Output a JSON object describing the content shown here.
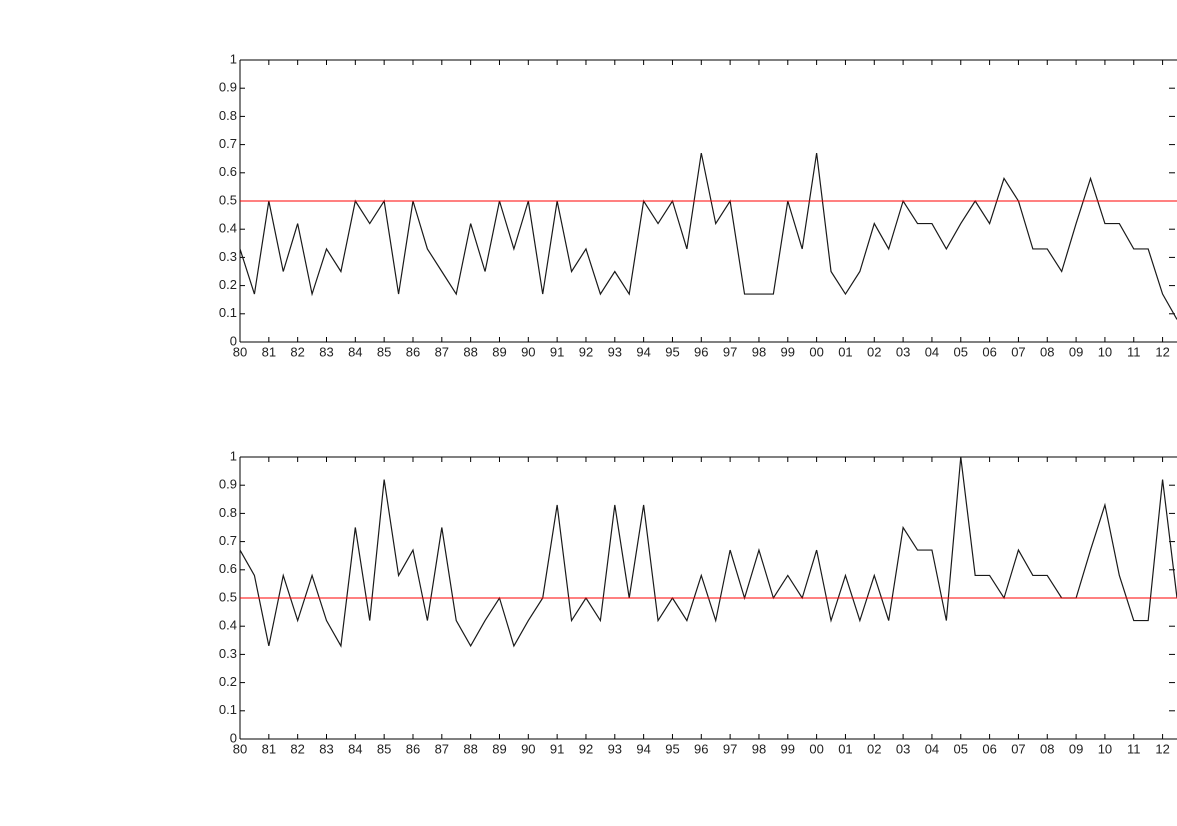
{
  "chart_data": [
    {
      "type": "line",
      "color": "#1a1a1a",
      "x": [
        1980,
        1980.5,
        1981,
        1981.5,
        1982,
        1982.5,
        1983,
        1983.5,
        1984,
        1984.5,
        1985,
        1985.5,
        1986,
        1986.5,
        1987,
        1987.5,
        1988,
        1988.5,
        1989,
        1989.5,
        1990,
        1990.5,
        1991,
        1991.5,
        1992,
        1992.5,
        1993,
        1993.5,
        1994,
        1994.5,
        1995,
        1995.5,
        1996,
        1996.5,
        1997,
        1997.5,
        1998,
        1998.5,
        1999,
        1999.5,
        2000,
        2000.5,
        2001,
        2001.5,
        2002,
        2002.5,
        2003,
        2003.5,
        2004,
        2004.5,
        2005,
        2005.5,
        2006,
        2006.5,
        2007,
        2007.5,
        2008,
        2008.5,
        2009,
        2009.5,
        2010,
        2010.5,
        2011,
        2011.5,
        2012,
        2012.5
      ],
      "values": [
        0.33,
        0.17,
        0.5,
        0.25,
        0.42,
        0.17,
        0.33,
        0.25,
        0.5,
        0.42,
        0.5,
        0.17,
        0.5,
        0.33,
        0.25,
        0.17,
        0.42,
        0.25,
        0.5,
        0.33,
        0.5,
        0.17,
        0.5,
        0.25,
        0.33,
        0.17,
        0.25,
        0.17,
        0.5,
        0.42,
        0.5,
        0.33,
        0.67,
        0.42,
        0.5,
        0.17,
        0.17,
        0.17,
        0.5,
        0.33,
        0.67,
        0.25,
        0.17,
        0.25,
        0.42,
        0.33,
        0.5,
        0.42,
        0.42,
        0.33,
        0.42,
        0.5,
        0.42,
        0.58,
        0.5,
        0.33,
        0.33,
        0.25,
        0.42,
        0.58,
        0.42,
        0.42,
        0.33,
        0.33,
        0.17,
        0.08
      ],
      "reference_line": {
        "value": 0.5,
        "color": "#ff0000"
      },
      "xlim": [
        1980,
        2012.5
      ],
      "ylim": [
        0,
        1
      ],
      "xticks": [
        {
          "value": 1980,
          "label": "80"
        },
        {
          "value": 1981,
          "label": "81"
        },
        {
          "value": 1982,
          "label": "82"
        },
        {
          "value": 1983,
          "label": "83"
        },
        {
          "value": 1984,
          "label": "84"
        },
        {
          "value": 1985,
          "label": "85"
        },
        {
          "value": 1986,
          "label": "86"
        },
        {
          "value": 1987,
          "label": "87"
        },
        {
          "value": 1988,
          "label": "88"
        },
        {
          "value": 1989,
          "label": "89"
        },
        {
          "value": 1990,
          "label": "90"
        },
        {
          "value": 1991,
          "label": "91"
        },
        {
          "value": 1992,
          "label": "92"
        },
        {
          "value": 1993,
          "label": "93"
        },
        {
          "value": 1994,
          "label": "94"
        },
        {
          "value": 1995,
          "label": "95"
        },
        {
          "value": 1996,
          "label": "96"
        },
        {
          "value": 1997,
          "label": "97"
        },
        {
          "value": 1998,
          "label": "98"
        },
        {
          "value": 1999,
          "label": "99"
        },
        {
          "value": 2000,
          "label": "00"
        },
        {
          "value": 2001,
          "label": "01"
        },
        {
          "value": 2002,
          "label": "02"
        },
        {
          "value": 2003,
          "label": "03"
        },
        {
          "value": 2004,
          "label": "04"
        },
        {
          "value": 2005,
          "label": "05"
        },
        {
          "value": 2006,
          "label": "06"
        },
        {
          "value": 2007,
          "label": "07"
        },
        {
          "value": 2008,
          "label": "08"
        },
        {
          "value": 2009,
          "label": "09"
        },
        {
          "value": 2010,
          "label": "10"
        },
        {
          "value": 2011,
          "label": "11"
        },
        {
          "value": 2012,
          "label": "12"
        }
      ],
      "yticks": [
        0,
        0.1,
        0.2,
        0.3,
        0.4,
        0.5,
        0.6,
        0.7,
        0.8,
        0.9,
        1
      ]
    },
    {
      "type": "line",
      "color": "#1a1a1a",
      "x": [
        1980,
        1980.5,
        1981,
        1981.5,
        1982,
        1982.5,
        1983,
        1983.5,
        1984,
        1984.5,
        1985,
        1985.5,
        1986,
        1986.5,
        1987,
        1987.5,
        1988,
        1988.5,
        1989,
        1989.5,
        1990,
        1990.5,
        1991,
        1991.5,
        1992,
        1992.5,
        1993,
        1993.5,
        1994,
        1994.5,
        1995,
        1995.5,
        1996,
        1996.5,
        1997,
        1997.5,
        1998,
        1998.5,
        1999,
        1999.5,
        2000,
        2000.5,
        2001,
        2001.5,
        2002,
        2002.5,
        2003,
        2003.5,
        2004,
        2004.5,
        2005,
        2005.5,
        2006,
        2006.5,
        2007,
        2007.5,
        2008,
        2008.5,
        2009,
        2009.5,
        2010,
        2010.5,
        2011,
        2011.5,
        2012,
        2012.5
      ],
      "values": [
        0.67,
        0.58,
        0.33,
        0.58,
        0.42,
        0.58,
        0.42,
        0.33,
        0.75,
        0.42,
        0.92,
        0.58,
        0.67,
        0.42,
        0.75,
        0.42,
        0.33,
        0.42,
        0.5,
        0.33,
        0.42,
        0.5,
        0.83,
        0.42,
        0.5,
        0.42,
        0.83,
        0.5,
        0.83,
        0.42,
        0.5,
        0.42,
        0.58,
        0.42,
        0.67,
        0.5,
        0.67,
        0.5,
        0.58,
        0.5,
        0.67,
        0.42,
        0.58,
        0.42,
        0.58,
        0.42,
        0.75,
        0.67,
        0.67,
        0.42,
        1,
        0.58,
        0.58,
        0.5,
        0.67,
        0.58,
        0.58,
        0.5,
        0.5,
        0.67,
        0.83,
        0.58,
        0.42,
        0.42,
        0.92,
        0.5
      ],
      "reference_line": {
        "value": 0.5,
        "color": "#ff0000"
      },
      "xlim": [
        1980,
        2012.5
      ],
      "ylim": [
        0,
        1
      ],
      "xticks": [
        {
          "value": 1980,
          "label": "80"
        },
        {
          "value": 1981,
          "label": "81"
        },
        {
          "value": 1982,
          "label": "82"
        },
        {
          "value": 1983,
          "label": "83"
        },
        {
          "value": 1984,
          "label": "84"
        },
        {
          "value": 1985,
          "label": "85"
        },
        {
          "value": 1986,
          "label": "86"
        },
        {
          "value": 1987,
          "label": "87"
        },
        {
          "value": 1988,
          "label": "88"
        },
        {
          "value": 1989,
          "label": "89"
        },
        {
          "value": 1990,
          "label": "90"
        },
        {
          "value": 1991,
          "label": "91"
        },
        {
          "value": 1992,
          "label": "92"
        },
        {
          "value": 1993,
          "label": "93"
        },
        {
          "value": 1994,
          "label": "94"
        },
        {
          "value": 1995,
          "label": "95"
        },
        {
          "value": 1996,
          "label": "96"
        },
        {
          "value": 1997,
          "label": "97"
        },
        {
          "value": 1998,
          "label": "98"
        },
        {
          "value": 1999,
          "label": "99"
        },
        {
          "value": 2000,
          "label": "00"
        },
        {
          "value": 2001,
          "label": "01"
        },
        {
          "value": 2002,
          "label": "02"
        },
        {
          "value": 2003,
          "label": "03"
        },
        {
          "value": 2004,
          "label": "04"
        },
        {
          "value": 2005,
          "label": "05"
        },
        {
          "value": 2006,
          "label": "06"
        },
        {
          "value": 2007,
          "label": "07"
        },
        {
          "value": 2008,
          "label": "08"
        },
        {
          "value": 2009,
          "label": "09"
        },
        {
          "value": 2010,
          "label": "10"
        },
        {
          "value": 2011,
          "label": "11"
        },
        {
          "value": 2012,
          "label": "12"
        }
      ],
      "yticks": [
        0,
        0.1,
        0.2,
        0.3,
        0.4,
        0.5,
        0.6,
        0.7,
        0.8,
        0.9,
        1
      ]
    }
  ]
}
